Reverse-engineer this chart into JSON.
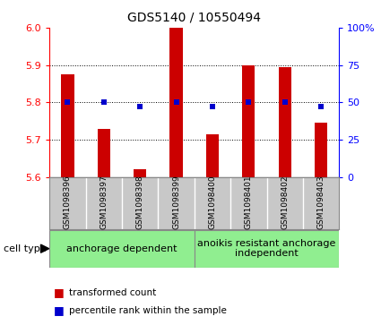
{
  "title": "GDS5140 / 10550494",
  "samples": [
    "GSM1098396",
    "GSM1098397",
    "GSM1098398",
    "GSM1098399",
    "GSM1098400",
    "GSM1098401",
    "GSM1098402",
    "GSM1098403"
  ],
  "transformed_counts": [
    5.875,
    5.73,
    5.62,
    6.0,
    5.715,
    5.9,
    5.895,
    5.745
  ],
  "percentile_ranks": [
    50,
    50,
    47,
    50,
    47,
    50,
    50,
    47
  ],
  "ylim_left": [
    5.6,
    6.0
  ],
  "ylim_right": [
    0,
    100
  ],
  "yticks_left": [
    5.6,
    5.7,
    5.8,
    5.9,
    6.0
  ],
  "yticks_right": [
    0,
    25,
    50,
    75,
    100
  ],
  "bar_color": "#CC0000",
  "dot_color": "#0000CC",
  "group1_label": "anchorage dependent",
  "group2_label": "anoikis resistant anchorage\nindependent",
  "group1_indices": [
    0,
    1,
    2,
    3
  ],
  "group2_indices": [
    4,
    5,
    6,
    7
  ],
  "group1_bg": "#90EE90",
  "group2_bg": "#90EE90",
  "tick_area_bg": "#C8C8C8",
  "legend1": "transformed count",
  "legend2": "percentile rank within the sample",
  "cell_type_label": "cell type",
  "bar_width": 0.35
}
